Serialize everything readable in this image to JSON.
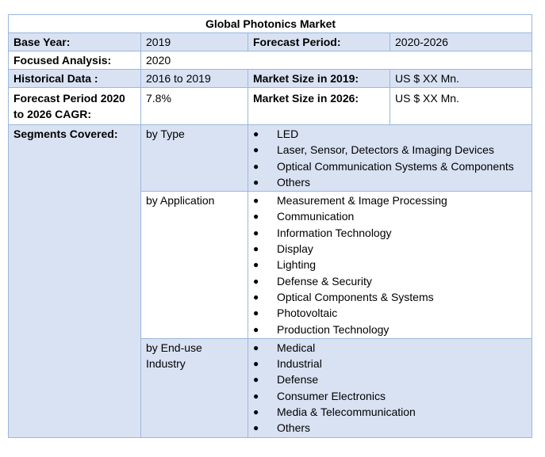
{
  "title": "Global Photonics Market",
  "rows": {
    "base_year": {
      "label": "Base Year:",
      "value": "2019"
    },
    "forecast_period": {
      "label": "Forecast Period:",
      "value": "2020-2026"
    },
    "focused_analysis": {
      "label": "Focused Analysis:",
      "value": "2020"
    },
    "historical_data": {
      "label": "Historical Data :",
      "value": "2016 to 2019"
    },
    "market_size_2019": {
      "label": "Market Size in 2019:",
      "value": "US $ XX Mn."
    },
    "forecast_cagr": {
      "label": "Forecast Period 2020 to 2026 CAGR:",
      "value": "7.8%"
    },
    "market_size_2026": {
      "label": "Market Size in 2026:",
      "value": "US $ XX Mn."
    }
  },
  "segments": {
    "label": "Segments Covered:",
    "groups": [
      {
        "name": "by Type",
        "items": [
          "LED",
          "Laser, Sensor, Detectors & Imaging Devices",
          "Optical Communication Systems & Components",
          "Others"
        ]
      },
      {
        "name": "by Application",
        "items": [
          "Measurement & Image Processing",
          "Communication",
          "Information Technology",
          "Display",
          "Lighting",
          "Defense & Security",
          "Optical Components & Systems",
          "Photovoltaic",
          "Production Technology"
        ]
      },
      {
        "name": "by End-use Industry",
        "items": [
          "Medical",
          "Industrial",
          "Defense",
          "Consumer Electronics",
          "Media & Telecommunication",
          "Others"
        ]
      }
    ]
  },
  "bullet_glyph": "●",
  "colors": {
    "band": "#d9e2f3",
    "border": "#9bb7dc"
  }
}
